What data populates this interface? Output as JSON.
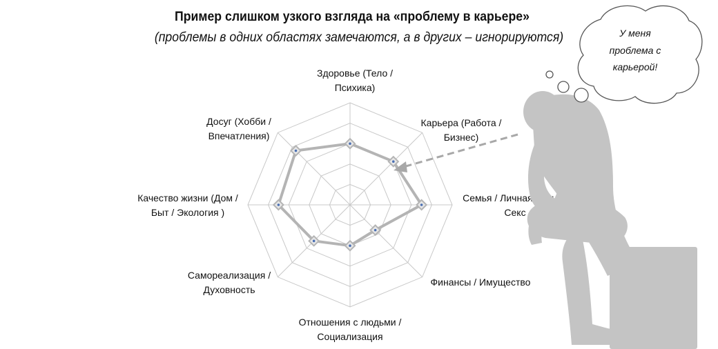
{
  "header": {
    "title": "Пример слишком узкого взгляда на «проблему в карьере»",
    "subtitle": "(проблемы в одних областях замечаются, а в других – игнорируются)"
  },
  "thought_bubble": {
    "lines": [
      "У меня",
      "проблема  с",
      "карьерой!"
    ]
  },
  "chart_data": {
    "type": "radar",
    "axes": [
      [
        "Здоровье (Тело /",
        "Психика)"
      ],
      [
        "Карьера (Работа /",
        "Бизнес)"
      ],
      [
        "Семья / Личная жизнь /",
        "Секс"
      ],
      [
        "Финансы / Имущество"
      ],
      [
        "Отношения с людьми /",
        "Социализация"
      ],
      [
        "Самореализация /",
        "Духовность"
      ],
      [
        "Качество жизни (Дом /",
        "Быт / Экология )"
      ],
      [
        "Досуг (Хобби /",
        "Впечатления)"
      ]
    ],
    "values": [
      6,
      6,
      7,
      3.5,
      4,
      5,
      7,
      7.5
    ],
    "rmax": 10,
    "rings": 5,
    "grid": true,
    "colors": {
      "grid": "#c8c8c8",
      "series_line": "#b4b4b4",
      "marker": "#4a6fb3",
      "arrow": "#a8a8a8",
      "figure": "#c4c4c4"
    }
  }
}
